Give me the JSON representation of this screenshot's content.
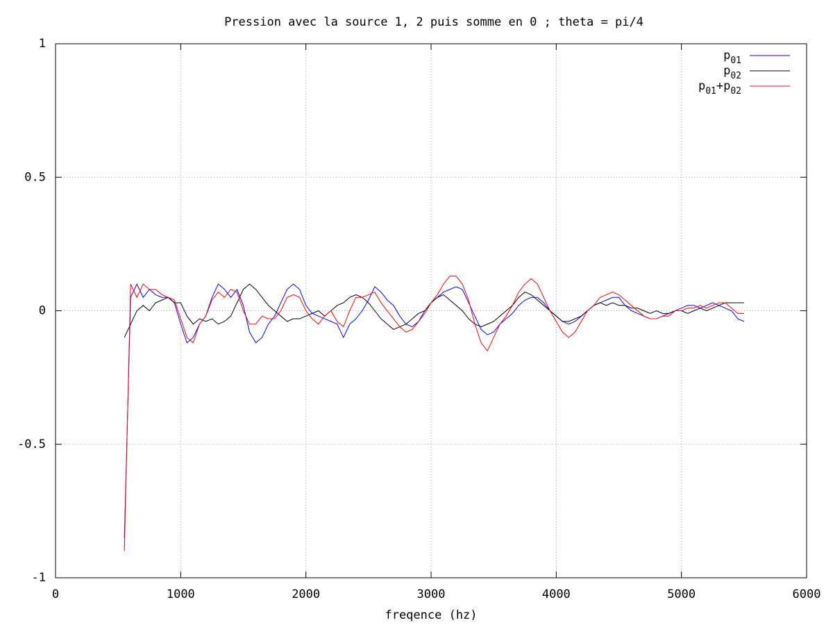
{
  "chart_data": {
    "type": "line",
    "title": "Pression avec la source 1, 2 puis somme en 0 ; theta = pi/4",
    "x_label": "freqence (hz)",
    "xlim": [
      0,
      6000
    ],
    "xticks": [
      0,
      1000,
      2000,
      3000,
      4000,
      5000,
      6000
    ],
    "ylim": [
      -1,
      1
    ],
    "yticks": [
      -1,
      -0.5,
      0,
      0.5,
      1
    ],
    "grid": true,
    "legend": "top-right",
    "x": [
      550,
      600,
      650,
      700,
      750,
      800,
      850,
      900,
      950,
      1000,
      1050,
      1100,
      1150,
      1200,
      1250,
      1300,
      1350,
      1400,
      1450,
      1500,
      1550,
      1600,
      1650,
      1700,
      1750,
      1800,
      1850,
      1900,
      1950,
      2000,
      2050,
      2100,
      2150,
      2200,
      2250,
      2300,
      2350,
      2400,
      2450,
      2500,
      2550,
      2600,
      2650,
      2700,
      2750,
      2800,
      2850,
      2900,
      2950,
      3000,
      3050,
      3100,
      3150,
      3200,
      3250,
      3300,
      3350,
      3400,
      3450,
      3500,
      3550,
      3600,
      3650,
      3700,
      3750,
      3800,
      3850,
      3900,
      3950,
      4000,
      4050,
      4100,
      4150,
      4200,
      4250,
      4300,
      4350,
      4400,
      4450,
      4500,
      4550,
      4600,
      4650,
      4700,
      4750,
      4800,
      4850,
      4900,
      4950,
      5000,
      5050,
      5100,
      5150,
      5200,
      5250,
      5300,
      5350,
      5400,
      5450,
      5500
    ],
    "series": [
      {
        "name": "p01",
        "color": "#0000ff",
        "values": [
          -0.85,
          0.05,
          0.1,
          0.05,
          0.08,
          0.06,
          0.05,
          0.05,
          0.03,
          -0.05,
          -0.12,
          -0.1,
          -0.05,
          -0.02,
          0.05,
          0.1,
          0.08,
          0.05,
          0.08,
          0.02,
          -0.08,
          -0.12,
          -0.1,
          -0.05,
          -0.02,
          0.03,
          0.08,
          0.1,
          0.08,
          0.02,
          -0.01,
          -0.02,
          -0.03,
          -0.04,
          -0.05,
          -0.1,
          -0.05,
          -0.03,
          0,
          0.04,
          0.09,
          0.07,
          0.04,
          0.02,
          -0.02,
          -0.05,
          -0.06,
          -0.04,
          0,
          0.03,
          0.05,
          0.07,
          0.08,
          0.09,
          0.08,
          0.03,
          -0.02,
          -0.07,
          -0.09,
          -0.08,
          -0.05,
          -0.03,
          -0.01,
          0.02,
          0.04,
          0.05,
          0.05,
          0.03,
          0,
          -0.02,
          -0.04,
          -0.05,
          -0.04,
          -0.02,
          0,
          0.02,
          0.03,
          0.04,
          0.05,
          0.05,
          0.02,
          0,
          -0.01,
          -0.02,
          -0.03,
          -0.03,
          -0.02,
          -0.01,
          0,
          0.01,
          0.02,
          0.02,
          0.01,
          0.02,
          0.03,
          0.02,
          0.01,
          0,
          -0.03,
          -0.04
        ]
      },
      {
        "name": "p02",
        "color": "#000000",
        "values": [
          -0.1,
          -0.05,
          0,
          0.02,
          0,
          0.03,
          0.04,
          0.05,
          0.03,
          0.03,
          -0.02,
          -0.05,
          -0.03,
          -0.04,
          -0.03,
          -0.05,
          -0.04,
          -0.02,
          0.03,
          0.08,
          0.1,
          0.08,
          0.05,
          0.02,
          0,
          -0.02,
          -0.04,
          -0.03,
          -0.03,
          -0.02,
          -0.01,
          0,
          -0.02,
          0,
          0.02,
          0.03,
          0.05,
          0.06,
          0.05,
          0.03,
          0,
          -0.03,
          -0.05,
          -0.07,
          -0.06,
          -0.05,
          -0.03,
          -0.01,
          0,
          0.03,
          0.05,
          0.06,
          0.04,
          0.02,
          0,
          -0.03,
          -0.05,
          -0.06,
          -0.05,
          -0.04,
          -0.02,
          0,
          0.02,
          0.05,
          0.07,
          0.06,
          0.04,
          0.02,
          0,
          -0.02,
          -0.04,
          -0.04,
          -0.03,
          -0.02,
          0,
          0.02,
          0.03,
          0.02,
          0.03,
          0.02,
          0.02,
          0.01,
          0.01,
          0,
          -0.01,
          0,
          -0.01,
          -0.01,
          0,
          0,
          -0.01,
          0,
          0.01,
          0,
          0.01,
          0.02,
          0.03,
          0.03,
          0.03,
          0.03
        ]
      },
      {
        "name": "p01+p02",
        "color": "#ff0000",
        "values": [
          -0.9,
          0.1,
          0.05,
          0.1,
          0.08,
          0.08,
          0.06,
          0.05,
          0.04,
          -0.03,
          -0.1,
          -0.12,
          -0.05,
          -0.02,
          0.04,
          0.07,
          0.05,
          0.08,
          0.07,
          0,
          -0.05,
          -0.05,
          -0.02,
          -0.03,
          -0.03,
          0,
          0.05,
          0.06,
          0.05,
          0,
          -0.03,
          -0.05,
          -0.02,
          0,
          -0.04,
          -0.06,
          0,
          0.05,
          0.05,
          0.06,
          0.07,
          0.03,
          0,
          -0.03,
          -0.06,
          -0.08,
          -0.07,
          -0.04,
          -0.01,
          0.03,
          0.06,
          0.1,
          0.13,
          0.13,
          0.1,
          0.04,
          -0.05,
          -0.12,
          -0.15,
          -0.1,
          -0.05,
          -0.02,
          0.02,
          0.07,
          0.1,
          0.12,
          0.1,
          0.05,
          0,
          -0.04,
          -0.08,
          -0.1,
          -0.08,
          -0.04,
          0,
          0.02,
          0.05,
          0.06,
          0.07,
          0.06,
          0.04,
          0.02,
          0,
          -0.02,
          -0.03,
          -0.03,
          -0.02,
          -0.02,
          0,
          0,
          0.01,
          0.01,
          0.02,
          0.01,
          0.02,
          0.03,
          0.03,
          0.01,
          -0.01,
          -0.01
        ]
      }
    ]
  }
}
